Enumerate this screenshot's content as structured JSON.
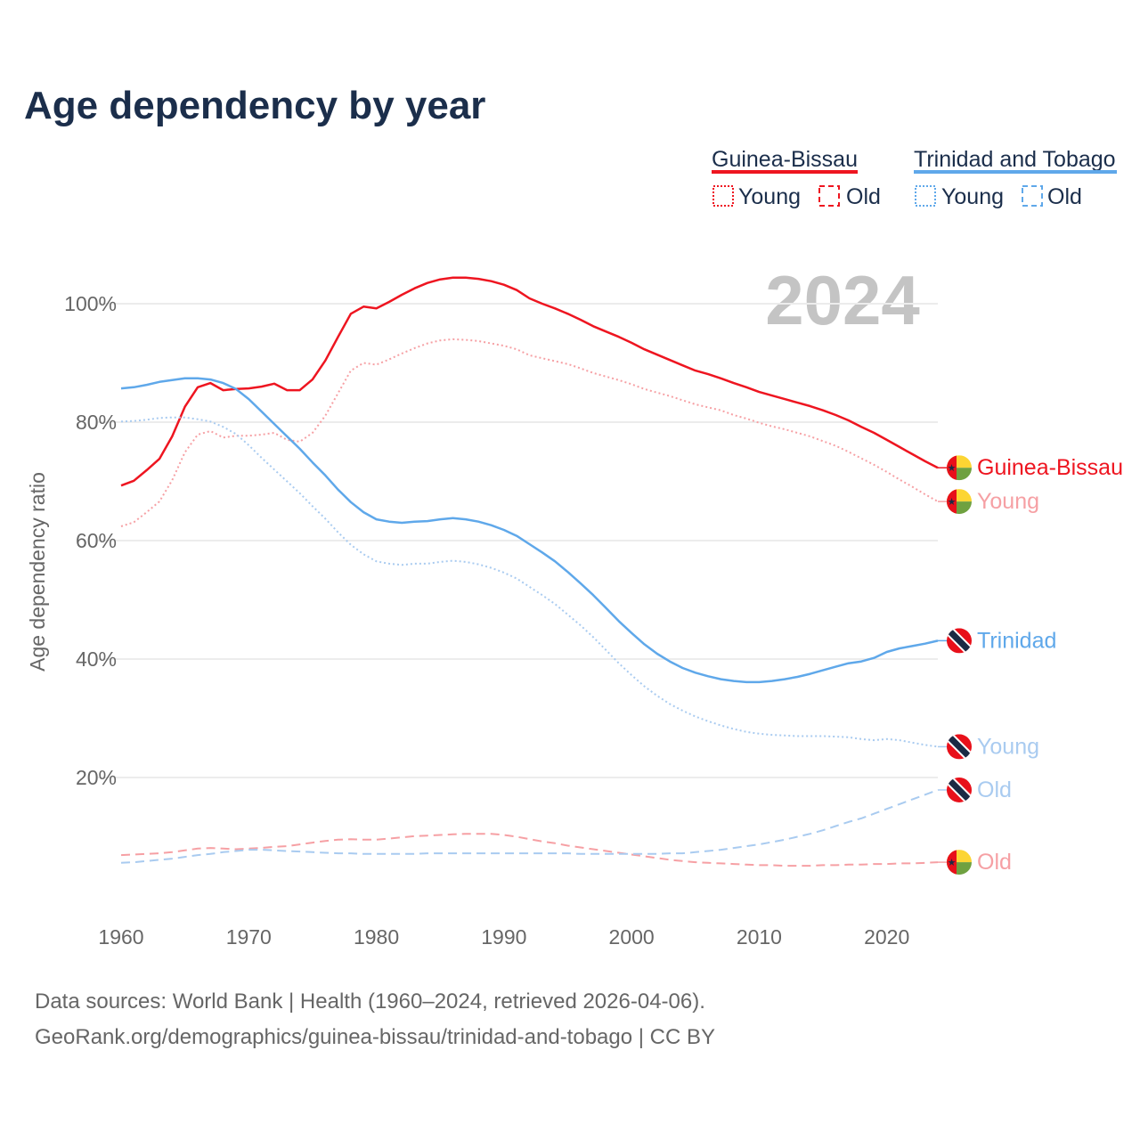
{
  "title": "Age dependency by year",
  "current_year_label": "2024",
  "legend": {
    "countries": [
      {
        "name": "Guinea-Bissau",
        "color": "#ee1520",
        "young_label": "Young",
        "old_label": "Old"
      },
      {
        "name": "Trinidad and Tobago",
        "color": "#5fa8ea",
        "young_label": "Young",
        "old_label": "Old"
      }
    ]
  },
  "footer": {
    "line1": "Data sources: World Bank | Health (1960–2024, retrieved 2026-04-06).",
    "line2": "GeoRank.org/demographics/guinea-bissau/trinidad-and-tobago | CC BY"
  },
  "chart_data": {
    "type": "line",
    "title": "Age dependency by year",
    "xlabel": "",
    "ylabel": "Age dependency ratio",
    "xlim": [
      1960,
      2024
    ],
    "ylim": [
      0,
      105
    ],
    "x_ticks": [
      "1960",
      "1970",
      "1980",
      "1990",
      "2000",
      "2010",
      "2020"
    ],
    "y_ticks": [
      "20%",
      "40%",
      "60%",
      "80%",
      "100%"
    ],
    "y_tick_values": [
      20,
      40,
      60,
      80,
      100
    ],
    "grid": true,
    "legend_position": "top-right",
    "x_start": 1960,
    "series": [
      {
        "name": "Guinea-Bissau",
        "end_label": "Guinea-Bissau",
        "flag": "guinea-bissau",
        "style": "solid",
        "color": "#ee1520",
        "values": [
          69.3,
          70.1,
          71.9,
          73.8,
          77.6,
          82.6,
          85.9,
          86.6,
          85.4,
          85.6,
          85.7,
          86.0,
          86.5,
          85.4,
          85.4,
          87.2,
          90.4,
          94.4,
          98.3,
          99.5,
          99.2,
          100.3,
          101.5,
          102.6,
          103.5,
          104.1,
          104.4,
          104.4,
          104.2,
          103.8,
          103.2,
          102.3,
          100.9,
          100.0,
          99.2,
          98.3,
          97.3,
          96.2,
          95.3,
          94.4,
          93.4,
          92.3,
          91.4,
          90.5,
          89.6,
          88.7,
          88.1,
          87.4,
          86.6,
          85.9,
          85.1,
          84.5,
          83.9,
          83.3,
          82.7,
          82.0,
          81.2,
          80.3,
          79.2,
          78.2,
          77.0,
          75.8,
          74.6,
          73.4,
          72.3
        ]
      },
      {
        "name": "Guinea-Bissau Young",
        "end_label": "Young",
        "flag": "guinea-bissau",
        "style": "dotted",
        "color": "#f6a0a4",
        "values": [
          62.4,
          63.1,
          64.8,
          66.6,
          70.2,
          74.9,
          77.9,
          78.5,
          77.4,
          77.7,
          77.7,
          77.9,
          78.2,
          77.0,
          76.7,
          78.2,
          81.1,
          84.9,
          88.7,
          90.0,
          89.7,
          90.6,
          91.6,
          92.5,
          93.3,
          93.8,
          94.0,
          93.9,
          93.7,
          93.3,
          92.9,
          92.3,
          91.3,
          90.8,
          90.3,
          89.8,
          89.1,
          88.3,
          87.7,
          87.1,
          86.4,
          85.6,
          85.0,
          84.4,
          83.7,
          83.0,
          82.5,
          82.0,
          81.2,
          80.6,
          79.9,
          79.3,
          78.8,
          78.2,
          77.6,
          76.8,
          76.0,
          75.0,
          73.9,
          72.8,
          71.6,
          70.3,
          69.1,
          67.8,
          66.6
        ]
      },
      {
        "name": "Guinea-Bissau Old",
        "end_label": "Old",
        "flag": "guinea-bissau",
        "style": "dashed",
        "color": "#f6a0a4",
        "values": [
          6.9,
          7.0,
          7.1,
          7.2,
          7.4,
          7.7,
          8.0,
          8.1,
          8.0,
          7.9,
          8.0,
          8.1,
          8.3,
          8.4,
          8.7,
          9.0,
          9.3,
          9.5,
          9.6,
          9.5,
          9.5,
          9.7,
          9.9,
          10.1,
          10.2,
          10.3,
          10.4,
          10.5,
          10.5,
          10.5,
          10.3,
          10.0,
          9.6,
          9.2,
          8.9,
          8.5,
          8.2,
          7.9,
          7.6,
          7.3,
          7.0,
          6.7,
          6.4,
          6.1,
          5.9,
          5.7,
          5.6,
          5.5,
          5.4,
          5.3,
          5.2,
          5.2,
          5.1,
          5.1,
          5.1,
          5.2,
          5.2,
          5.3,
          5.3,
          5.4,
          5.4,
          5.5,
          5.5,
          5.6,
          5.7
        ]
      },
      {
        "name": "Trinidad and Tobago",
        "end_label": "Trinidad",
        "flag": "trinidad",
        "style": "solid",
        "color": "#5fa8ea",
        "values": [
          85.7,
          85.9,
          86.3,
          86.8,
          87.1,
          87.4,
          87.4,
          87.2,
          86.6,
          85.6,
          83.9,
          81.8,
          79.7,
          77.6,
          75.5,
          73.2,
          71.0,
          68.6,
          66.5,
          64.8,
          63.6,
          63.2,
          63.0,
          63.2,
          63.3,
          63.6,
          63.8,
          63.6,
          63.2,
          62.6,
          61.8,
          60.8,
          59.4,
          58.0,
          56.5,
          54.7,
          52.8,
          50.8,
          48.6,
          46.4,
          44.4,
          42.5,
          40.9,
          39.6,
          38.5,
          37.7,
          37.1,
          36.6,
          36.3,
          36.1,
          36.1,
          36.3,
          36.6,
          37.0,
          37.5,
          38.1,
          38.7,
          39.3,
          39.6,
          40.2,
          41.2,
          41.8,
          42.2,
          42.6,
          43.1
        ]
      },
      {
        "name": "Trinidad and Tobago Young",
        "end_label": "Young",
        "flag": "trinidad",
        "style": "dotted",
        "color": "#a9cbf0",
        "values": [
          80.1,
          80.2,
          80.4,
          80.7,
          80.8,
          80.8,
          80.5,
          80.1,
          79.2,
          78.0,
          76.1,
          74.0,
          72.0,
          70.0,
          68.0,
          65.8,
          63.7,
          61.4,
          59.3,
          57.7,
          56.5,
          56.1,
          55.9,
          56.1,
          56.1,
          56.4,
          56.6,
          56.4,
          56.0,
          55.4,
          54.6,
          53.6,
          52.2,
          50.8,
          49.3,
          47.5,
          45.7,
          43.7,
          41.5,
          39.3,
          37.3,
          35.4,
          33.8,
          32.4,
          31.3,
          30.3,
          29.5,
          28.8,
          28.2,
          27.7,
          27.4,
          27.2,
          27.1,
          27.0,
          27.0,
          27.0,
          26.9,
          26.8,
          26.5,
          26.3,
          26.5,
          26.3,
          25.9,
          25.5,
          25.2
        ]
      },
      {
        "name": "Trinidad and Tobago Old",
        "end_label": "Old",
        "flag": "trinidad",
        "style": "dashed",
        "color": "#a9cbf0",
        "values": [
          5.6,
          5.7,
          5.9,
          6.1,
          6.3,
          6.6,
          6.9,
          7.1,
          7.4,
          7.6,
          7.8,
          7.8,
          7.7,
          7.6,
          7.5,
          7.4,
          7.3,
          7.2,
          7.2,
          7.1,
          7.1,
          7.1,
          7.1,
          7.1,
          7.2,
          7.2,
          7.2,
          7.2,
          7.2,
          7.2,
          7.2,
          7.2,
          7.2,
          7.2,
          7.2,
          7.2,
          7.1,
          7.1,
          7.1,
          7.1,
          7.1,
          7.1,
          7.1,
          7.2,
          7.2,
          7.4,
          7.6,
          7.8,
          8.1,
          8.4,
          8.7,
          9.1,
          9.5,
          10.0,
          10.5,
          11.1,
          11.8,
          12.5,
          13.1,
          13.9,
          14.7,
          15.5,
          16.3,
          17.1,
          17.9
        ]
      }
    ]
  }
}
